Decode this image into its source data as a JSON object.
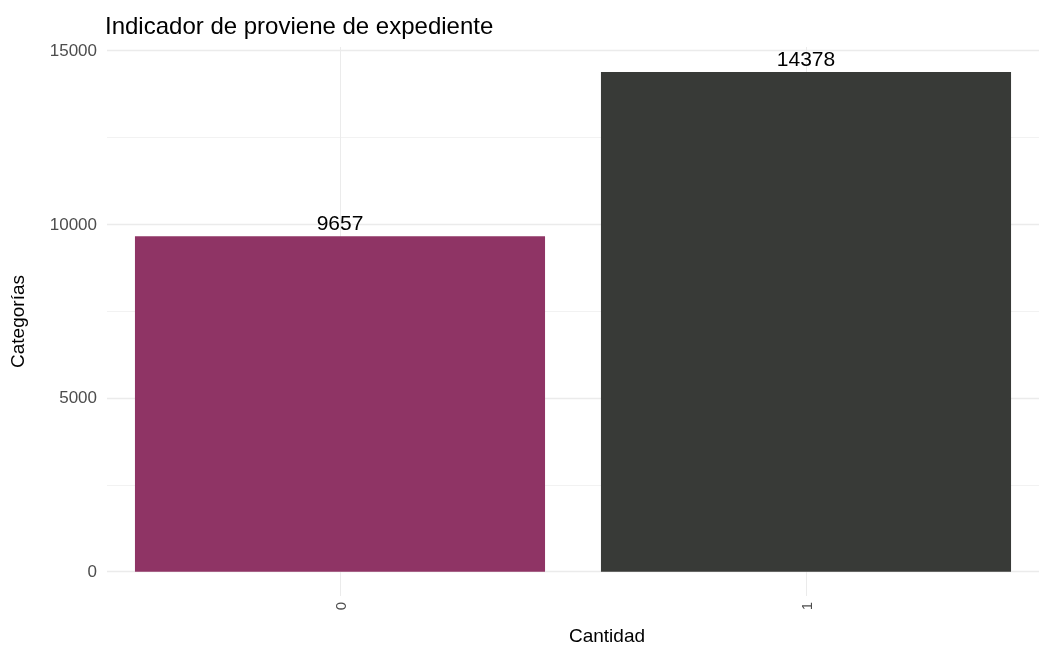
{
  "chart_data": {
    "type": "bar",
    "title": "Indicador de proviene de expediente",
    "xlabel": "Cantidad",
    "ylabel": "Categorías",
    "categories": [
      "0",
      "1"
    ],
    "values": [
      9657,
      14378
    ],
    "colors": [
      "#8f3465",
      "#383a37"
    ],
    "ylim": [
      -700,
      15100
    ],
    "yticks": [
      0,
      {
        "value": 2500,
        "label": null
      },
      5000,
      {
        "value": 7500,
        "label": null
      },
      10000,
      {
        "value": 12500,
        "label": null
      },
      15000
    ],
    "grid": true,
    "data_labels": true
  }
}
